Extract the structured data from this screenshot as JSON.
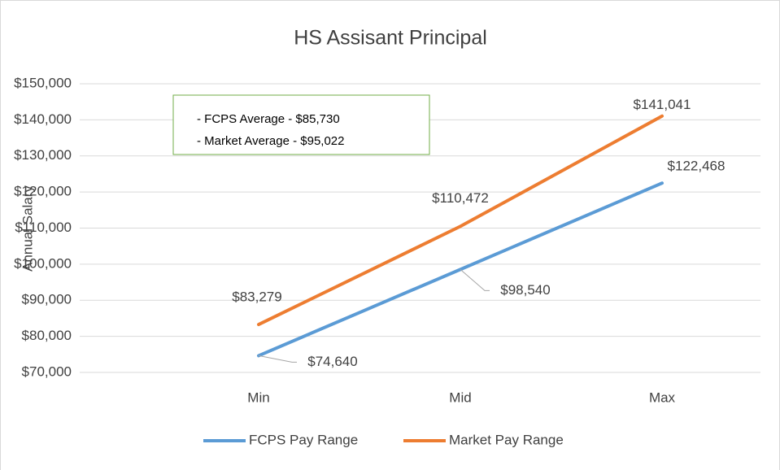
{
  "chart_data": {
    "type": "line",
    "title": "HS Assisant Principal",
    "y_label": "Annual Salary",
    "categories": [
      "Min",
      "Mid",
      "Max"
    ],
    "series": [
      {
        "name": "FCPS Pay Range",
        "color": "#5b9bd5",
        "values": [
          74640,
          98540,
          122468
        ],
        "value_labels": [
          "$74,640",
          "$98,540",
          "$122,468"
        ]
      },
      {
        "name": "Market Pay Range",
        "color": "#ed7d31",
        "values": [
          83279,
          110472,
          141041
        ],
        "value_labels": [
          "$83,279",
          "$110,472",
          "$141,041"
        ]
      }
    ],
    "ylim": [
      70000,
      150000
    ],
    "yticks": [
      {
        "value": 70000,
        "label": "$70,000"
      },
      {
        "value": 80000,
        "label": "$80,000"
      },
      {
        "value": 90000,
        "label": "$90,000"
      },
      {
        "value": 100000,
        "label": "$100,000"
      },
      {
        "value": 110000,
        "label": "$110,000"
      },
      {
        "value": 120000,
        "label": "$120,000"
      },
      {
        "value": 130000,
        "label": "$130,000"
      },
      {
        "value": 140000,
        "label": "$140,000"
      },
      {
        "value": 150000,
        "label": "$150,000"
      }
    ],
    "grid": true,
    "legend": "bottom",
    "annotation": [
      "- FCPS Average - $85,730",
      "- Market Average - $95,022"
    ]
  }
}
